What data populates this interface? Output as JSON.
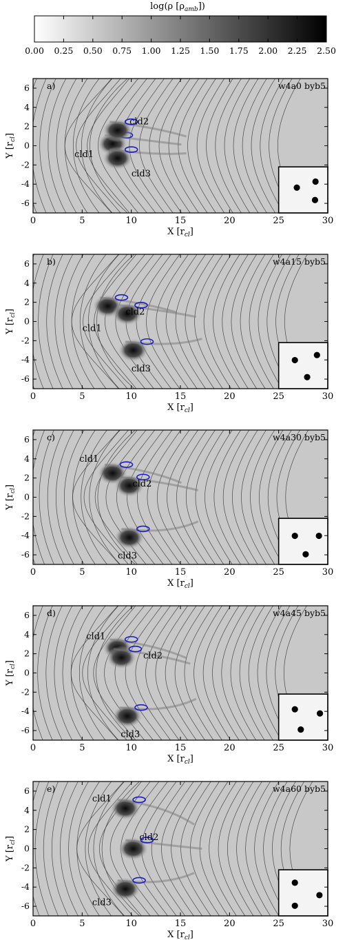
{
  "colorbar": {
    "label": "log(ρ [ρ",
    "label_sub": "amb",
    "label_end": "])",
    "vmin": 0.0,
    "vmax": 2.5,
    "ticks": [
      "0.00",
      "0.25",
      "0.50",
      "0.75",
      "1.00",
      "1.25",
      "1.50",
      "1.75",
      "2.00",
      "2.25",
      "2.50"
    ],
    "colormap": [
      "#ffffff",
      "#000000"
    ]
  },
  "axes": {
    "xlabel": "X [r",
    "ylabel": "Y [r",
    "label_sub": "cl",
    "label_end": "]",
    "xlim": [
      0,
      30
    ],
    "ylim": [
      -7,
      7
    ],
    "xticks": [
      0,
      5,
      10,
      15,
      20,
      25,
      30
    ],
    "yticks": [
      -6,
      -4,
      -2,
      0,
      2,
      4,
      6
    ]
  },
  "colors": {
    "contour": "#1a1acc",
    "field_lines": "#333333",
    "background": "#c8c8c8"
  },
  "chart_data": [
    {
      "type": "heatmap",
      "panel": "a)",
      "title": "w4a0 byb5",
      "xlim": [
        0,
        30
      ],
      "ylim": [
        -7,
        7
      ],
      "clouds": [
        {
          "name": "cld1",
          "x": 8.1,
          "y": 0.2,
          "label_x": 5.2,
          "label_y": -0.9
        },
        {
          "name": "cld2",
          "x": 8.6,
          "y": 1.6,
          "label_x": 10.8,
          "label_y": 2.5
        },
        {
          "name": "cld3",
          "x": 8.6,
          "y": -1.3,
          "label_x": 11.0,
          "label_y": -2.9
        }
      ],
      "inset_clouds": [
        [
          0.37,
          0.55
        ],
        [
          0.75,
          0.68
        ],
        [
          0.74,
          0.28
        ]
      ]
    },
    {
      "type": "heatmap",
      "panel": "b)",
      "title": "w4a15 byb5",
      "xlim": [
        0,
        30
      ],
      "ylim": [
        -7,
        7
      ],
      "clouds": [
        {
          "name": "cld1",
          "x": 7.6,
          "y": 1.6,
          "label_x": 6.0,
          "label_y": -0.7
        },
        {
          "name": "cld2",
          "x": 9.6,
          "y": 0.8,
          "label_x": 10.4,
          "label_y": 1.0
        },
        {
          "name": "cld3",
          "x": 10.2,
          "y": -3.0,
          "label_x": 11.0,
          "label_y": -4.9
        }
      ],
      "inset_clouds": [
        [
          0.33,
          0.62
        ],
        [
          0.78,
          0.73
        ],
        [
          0.58,
          0.25
        ]
      ]
    },
    {
      "type": "heatmap",
      "panel": "c)",
      "title": "w4a30 byb5",
      "xlim": [
        0,
        30
      ],
      "ylim": [
        -7,
        7
      ],
      "clouds": [
        {
          "name": "cld1",
          "x": 8.1,
          "y": 2.5,
          "label_x": 5.7,
          "label_y": 4.0
        },
        {
          "name": "cld2",
          "x": 9.8,
          "y": 1.2,
          "label_x": 11.1,
          "label_y": 1.4
        },
        {
          "name": "cld3",
          "x": 9.8,
          "y": -4.2,
          "label_x": 9.6,
          "label_y": -6.1
        }
      ],
      "inset_clouds": [
        [
          0.33,
          0.62
        ],
        [
          0.82,
          0.62
        ],
        [
          0.55,
          0.22
        ]
      ]
    },
    {
      "type": "heatmap",
      "panel": "d)",
      "title": "w4a45 byb5",
      "xlim": [
        0,
        30
      ],
      "ylim": [
        -7,
        7
      ],
      "clouds": [
        {
          "name": "cld1",
          "x": 8.6,
          "y": 2.6,
          "label_x": 6.4,
          "label_y": 3.8
        },
        {
          "name": "cld2",
          "x": 9.0,
          "y": 1.6,
          "label_x": 12.2,
          "label_y": 1.8
        },
        {
          "name": "cld3",
          "x": 9.6,
          "y": -4.5,
          "label_x": 9.9,
          "label_y": -6.4
        }
      ],
      "inset_clouds": [
        [
          0.33,
          0.67
        ],
        [
          0.84,
          0.58
        ],
        [
          0.45,
          0.23
        ]
      ]
    },
    {
      "type": "heatmap",
      "panel": "e)",
      "title": "w4a60 byb5",
      "xlim": [
        0,
        30
      ],
      "ylim": [
        -7,
        7
      ],
      "clouds": [
        {
          "name": "cld1",
          "x": 9.4,
          "y": 4.2,
          "label_x": 7.0,
          "label_y": 5.2
        },
        {
          "name": "cld2",
          "x": 10.2,
          "y": 0.0,
          "label_x": 11.8,
          "label_y": 1.2
        },
        {
          "name": "cld3",
          "x": 9.4,
          "y": -4.2,
          "label_x": 7.0,
          "label_y": -5.6
        }
      ],
      "inset_clouds": [
        [
          0.33,
          0.72
        ],
        [
          0.83,
          0.45
        ],
        [
          0.33,
          0.22
        ]
      ]
    }
  ]
}
